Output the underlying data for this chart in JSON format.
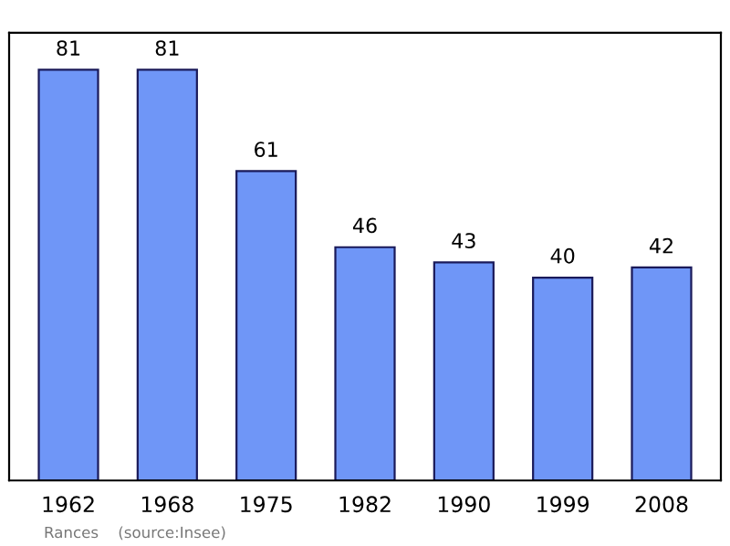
{
  "chart_data": {
    "type": "bar",
    "categories": [
      "1962",
      "1968",
      "1975",
      "1982",
      "1990",
      "1999",
      "2008"
    ],
    "values": [
      81,
      81,
      61,
      46,
      43,
      40,
      42
    ],
    "color": "#6f96f7",
    "data_labels": true,
    "grid": false,
    "legend": false,
    "annotations": [
      "Rances    (source:Insee)"
    ]
  }
}
